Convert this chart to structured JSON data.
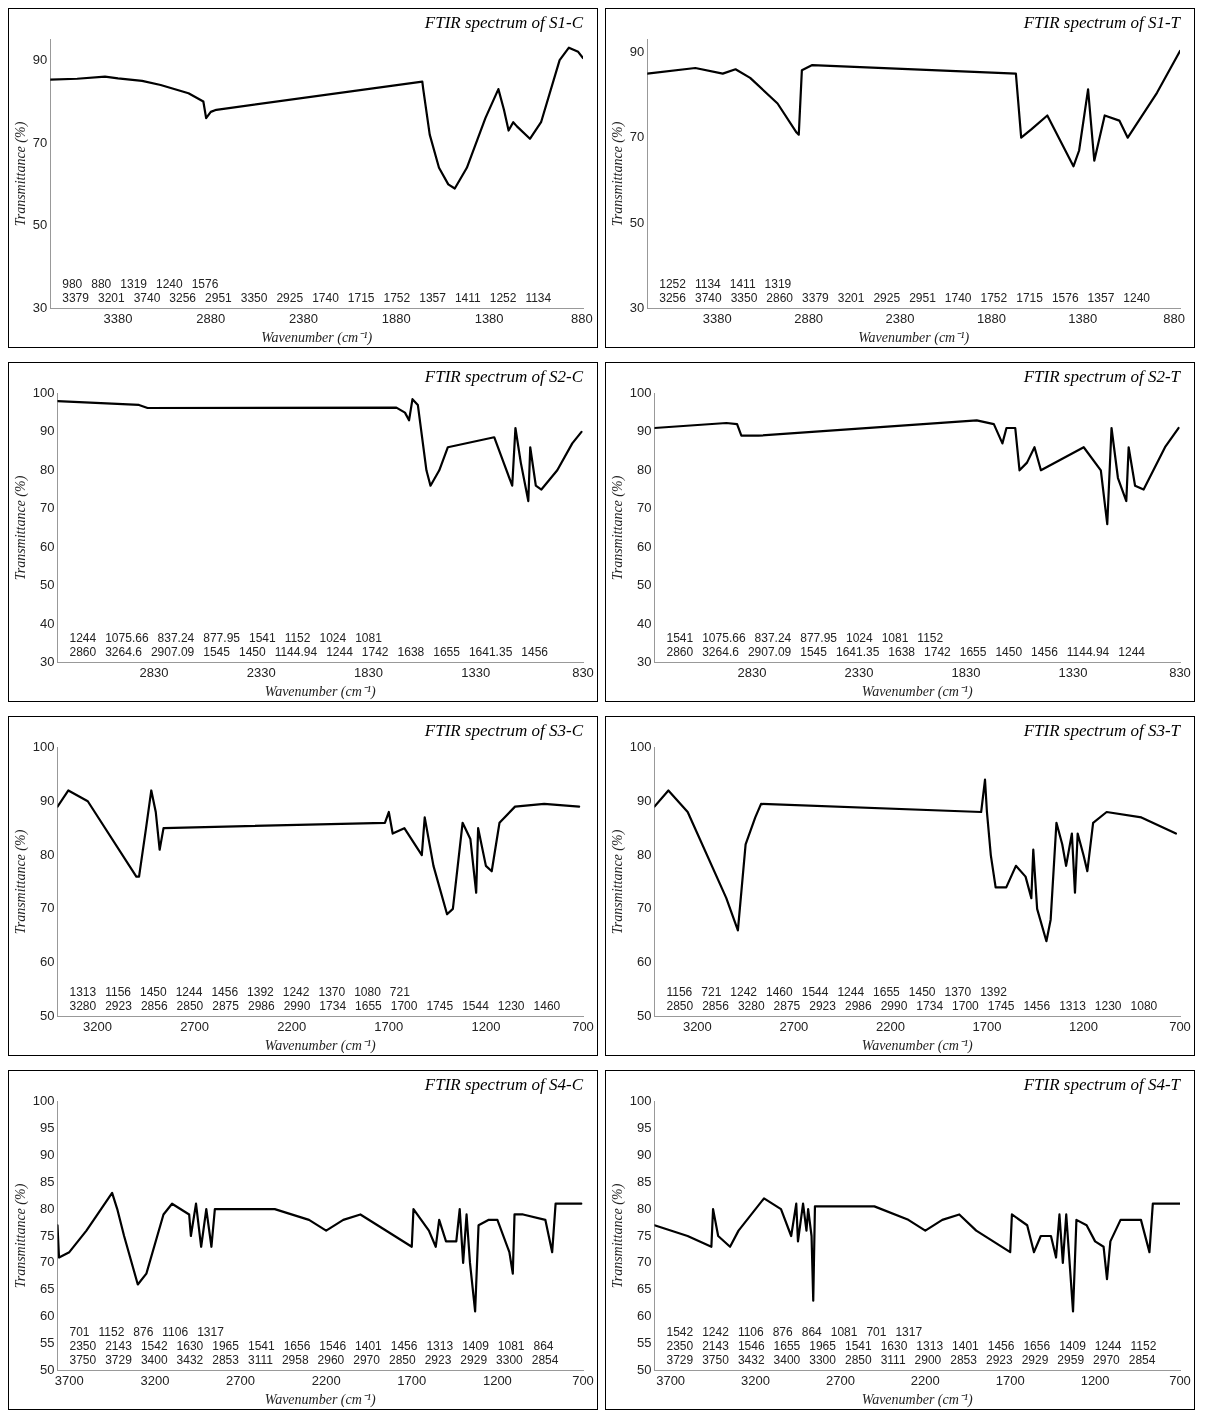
{
  "chart_data": [
    {
      "type": "line",
      "title": "FTIR spectrum of S1-C",
      "xlabel": "Wavenumber (cm⁻¹)",
      "ylabel": "Transmittance (%)",
      "color": "#000000",
      "x": [
        3745,
        3600,
        3450,
        3380,
        3250,
        3150,
        3000,
        2920,
        2905,
        2880,
        2850,
        1740,
        1735,
        1700,
        1650,
        1600,
        1565,
        1500,
        1400,
        1330,
        1300,
        1275,
        1250,
        1230,
        1160,
        1100,
        1000,
        950,
        900,
        874
      ],
      "values": [
        85.3,
        85.5,
        86,
        85.6,
        85,
        84,
        82,
        80,
        76,
        77.5,
        78,
        84.8,
        83,
        72,
        64,
        60,
        59,
        64,
        76,
        83,
        78,
        73,
        75,
        74,
        71,
        75,
        90,
        93,
        92,
        90.5
      ],
      "xlim": [
        3745,
        874
      ],
      "xticks": [
        3380,
        2880,
        2380,
        1880,
        1380,
        880
      ],
      "ylim": [
        30,
        95
      ],
      "yticks": [
        30,
        50,
        70,
        90
      ],
      "annotations": [
        "3379",
        "3201",
        "3740",
        "3256",
        "2951",
        "3350",
        "2925",
        "1740",
        "1715",
        "1752",
        "1357",
        "1411",
        "1252",
        "1134",
        "980",
        "880",
        "1319",
        "1240",
        "1576"
      ]
    },
    {
      "type": "line",
      "title": "FTIR spectrum of S1-T",
      "xlabel": "Wavenumber (cm⁻¹)",
      "ylabel": "Transmittance (%)",
      "color": "#000000",
      "x": [
        3763,
        3500,
        3350,
        3280,
        3200,
        3050,
        2946,
        2934,
        2917,
        2860,
        1746,
        1717,
        1660,
        1574,
        1431,
        1400,
        1351,
        1317,
        1260,
        1180,
        1134,
        974,
        848
      ],
      "values": [
        85,
        86.3,
        85,
        86,
        84,
        78,
        71.2,
        70.7,
        85.8,
        87,
        85,
        70,
        72,
        75.2,
        63.3,
        67,
        81.3,
        64.6,
        75.2,
        74,
        70,
        80.5,
        90.3
      ],
      "xlim": [
        3763,
        848
      ],
      "xticks": [
        3380,
        2880,
        2380,
        1880,
        1380,
        880
      ],
      "ylim": [
        30,
        93
      ],
      "yticks": [
        30,
        50,
        70,
        90
      ],
      "annotations": [
        "3256",
        "3740",
        "3350",
        "2860",
        "3379",
        "3201",
        "2925",
        "2951",
        "1740",
        "1752",
        "1715",
        "1576",
        "1357",
        "1240",
        "1252",
        "1134",
        "1411",
        "1319"
      ]
    },
    {
      "type": "line",
      "title": "FTIR spectrum of S2-C",
      "xlabel": "Wavenumber (cm⁻¹)",
      "ylabel": "Transmittance (%)",
      "color": "#000000",
      "x": [
        3280,
        2900,
        2860,
        1700,
        1660,
        1641,
        1625,
        1600,
        1560,
        1541,
        1500,
        1460,
        1244,
        1200,
        1160,
        1145,
        1120,
        1085,
        1076,
        1050,
        1024,
        950,
        880,
        837
      ],
      "values": [
        98,
        97,
        96.2,
        96.3,
        95,
        93,
        98.5,
        97,
        80,
        76,
        80,
        86,
        88.6,
        82,
        76,
        91,
        82,
        72,
        86,
        76,
        75,
        80,
        87,
        90
      ],
      "xlim": [
        3280,
        830
      ],
      "xticks": [
        2830,
        2330,
        1830,
        1330,
        830
      ],
      "ylim": [
        30,
        100
      ],
      "yticks": [
        30,
        40,
        50,
        60,
        70,
        80,
        90,
        100
      ],
      "annotations": [
        "2860",
        "3264.6",
        "2907.09",
        "1545",
        "1450",
        "1144.94",
        "1244",
        "1742",
        "1638",
        "1655",
        "1641.35",
        "1456",
        "1244",
        "1075.66",
        "837.24",
        "877.95",
        "1541",
        "1152",
        "1024",
        "1081"
      ]
    },
    {
      "type": "line",
      "title": "FTIR spectrum of S2-T",
      "xlabel": "Wavenumber (cm⁻¹)",
      "ylabel": "Transmittance (%)",
      "color": "#000000",
      "x": [
        3286,
        2950,
        2900,
        2880,
        2800,
        1780,
        1700,
        1660,
        1641,
        1600,
        1580,
        1545,
        1510,
        1480,
        1380,
        1280,
        1200,
        1170,
        1150,
        1120,
        1081,
        1070,
        1040,
        1000,
        900,
        837
      ],
      "values": [
        91,
        92.3,
        92,
        89,
        89,
        93,
        92,
        87,
        91,
        91,
        80,
        82,
        86,
        80,
        83,
        86,
        80,
        66,
        91,
        78,
        72,
        86,
        76,
        75,
        86,
        91
      ],
      "xlim": [
        3286,
        830
      ],
      "xticks": [
        2830,
        2330,
        1830,
        1330,
        830
      ],
      "ylim": [
        30,
        100
      ],
      "yticks": [
        30,
        40,
        50,
        60,
        70,
        80,
        90,
        100
      ],
      "annotations": [
        "2860",
        "3264.6",
        "2907.09",
        "1545",
        "1641.35",
        "1638",
        "1742",
        "1655",
        "1450",
        "1456",
        "1144.94",
        "1244",
        "1541",
        "1075.66",
        "837.24",
        "877.95",
        "1024",
        "1081",
        "1152"
      ]
    },
    {
      "type": "line",
      "title": "FTIR spectrum of S3-C",
      "xlabel": "Wavenumber (cm⁻¹)",
      "ylabel": "Transmittance (%)",
      "color": "#000000",
      "x": [
        3406,
        3350,
        3250,
        3000,
        2986,
        2950,
        2923,
        2900,
        2880,
        2860,
        1720,
        1700,
        1680,
        1620,
        1530,
        1515,
        1470,
        1400,
        1370,
        1320,
        1280,
        1250,
        1240,
        1200,
        1170,
        1130,
        1050,
        900,
        720
      ],
      "values": [
        89,
        92,
        90,
        76,
        76,
        85,
        92,
        88,
        81,
        85,
        86,
        88,
        84,
        85,
        80,
        87,
        78,
        69,
        70,
        86,
        83,
        73,
        85,
        78,
        77,
        86,
        89,
        89.5,
        89
      ],
      "xlim": [
        3406,
        700
      ],
      "xticks": [
        3200,
        2700,
        2200,
        1700,
        1200,
        700
      ],
      "ylim": [
        50,
        100
      ],
      "yticks": [
        50,
        60,
        70,
        80,
        90,
        100
      ],
      "annotations": [
        "3280",
        "2923",
        "2856",
        "2850",
        "2875",
        "2986",
        "2990",
        "1734",
        "1655",
        "1700",
        "1745",
        "1544",
        "1230",
        "1460",
        "1313",
        "1156",
        "1450",
        "1244",
        "1456",
        "1392",
        "1242",
        "1370",
        "1080",
        "721"
      ]
    },
    {
      "type": "line",
      "title": "FTIR spectrum of S3-T",
      "xlabel": "Wavenumber (cm⁻¹)",
      "ylabel": "Transmittance (%)",
      "color": "#000000",
      "x": [
        3422,
        3350,
        3250,
        3050,
        2990,
        2950,
        2900,
        2870,
        1730,
        1710,
        1700,
        1680,
        1655,
        1600,
        1550,
        1500,
        1470,
        1460,
        1440,
        1392,
        1370,
        1340,
        1310,
        1290,
        1260,
        1244,
        1230,
        1200,
        1180,
        1150,
        1080,
        900,
        721
      ],
      "values": [
        89,
        92,
        88,
        72,
        66,
        82,
        87,
        89.5,
        88,
        94,
        88,
        80,
        74,
        74,
        78,
        76,
        72,
        81,
        70,
        64,
        68,
        86,
        82,
        78,
        84,
        73,
        84,
        80,
        77,
        86,
        88,
        87,
        84
      ],
      "xlim": [
        3422,
        700
      ],
      "xticks": [
        3200,
        2700,
        2200,
        1700,
        1200,
        700
      ],
      "ylim": [
        50,
        100
      ],
      "yticks": [
        50,
        60,
        70,
        80,
        90,
        100
      ],
      "annotations": [
        "2850",
        "2856",
        "3280",
        "2875",
        "2923",
        "2986",
        "2990",
        "1734",
        "1700",
        "1745",
        "1456",
        "1313",
        "1230",
        "1080",
        "1156",
        "721",
        "1242",
        "1460",
        "1544",
        "1244",
        "1655",
        "1450",
        "1370",
        "1392"
      ]
    },
    {
      "type": "line",
      "title": "FTIR spectrum of S4-C",
      "xlabel": "Wavenumber (cm⁻¹)",
      "ylabel": "Transmittance (%)",
      "color": "#000000",
      "x": [
        3769,
        3760,
        3700,
        3600,
        3450,
        3420,
        3380,
        3300,
        3250,
        3150,
        3100,
        3000,
        2990,
        2960,
        2930,
        2900,
        2870,
        2850,
        2500,
        2300,
        2200,
        2100,
        2000,
        1900,
        1700,
        1690,
        1600,
        1560,
        1540,
        1500,
        1440,
        1420,
        1400,
        1380,
        1360,
        1330,
        1310,
        1250,
        1200,
        1130,
        1110,
        1100,
        1050,
        920,
        880,
        860,
        710
      ],
      "values": [
        77,
        71,
        72,
        76,
        83,
        80,
        75,
        66,
        68,
        79,
        81,
        79,
        75,
        81,
        73,
        80,
        73,
        80,
        80,
        78,
        76,
        78,
        79,
        77,
        73,
        80,
        76,
        73,
        78,
        74,
        74,
        80,
        70,
        79,
        70,
        61,
        77,
        78,
        78,
        72,
        68,
        79,
        79,
        78,
        72,
        81,
        81
      ],
      "xlim": [
        3769,
        700
      ],
      "xticks": [
        3700,
        3200,
        2700,
        2200,
        1700,
        1200,
        700
      ],
      "ylim": [
        50,
        100
      ],
      "yticks": [
        50,
        55,
        60,
        65,
        70,
        75,
        80,
        85,
        90,
        95,
        100
      ],
      "annotations": [
        "3750",
        "3729",
        "3400",
        "3432",
        "2853",
        "3111",
        "2958",
        "2960",
        "2970",
        "2850",
        "2923",
        "2929",
        "3300",
        "2854",
        "2350",
        "2143",
        "1542",
        "1630",
        "1965",
        "1541",
        "1656",
        "1546",
        "1401",
        "1456",
        "1313",
        "1409",
        "1081",
        "864",
        "701",
        "1152",
        "876",
        "1106",
        "1317"
      ]
    },
    {
      "type": "line",
      "title": "FTIR spectrum of S4-T",
      "xlabel": "Wavenumber (cm⁻¹)",
      "ylabel": "Transmittance (%)",
      "color": "#000000",
      "x": [
        3795,
        3600,
        3460,
        3450,
        3420,
        3350,
        3300,
        3150,
        3050,
        2990,
        2960,
        2950,
        2920,
        2900,
        2890,
        2870,
        2860,
        2850,
        2500,
        2300,
        2200,
        2100,
        2000,
        1900,
        1700,
        1690,
        1600,
        1560,
        1520,
        1460,
        1430,
        1410,
        1390,
        1370,
        1330,
        1310,
        1250,
        1200,
        1150,
        1130,
        1110,
        1050,
        930,
        880,
        860,
        700
      ],
      "values": [
        77,
        75,
        73,
        80,
        75,
        73,
        76,
        82,
        80,
        75,
        81,
        74,
        81,
        76,
        80,
        75,
        63,
        80.5,
        80.5,
        78,
        76,
        78,
        79,
        76,
        72,
        79,
        77,
        72,
        75,
        75,
        71,
        79,
        70,
        79,
        61,
        78,
        77,
        74,
        73,
        67,
        74,
        78,
        78,
        72,
        81,
        81
      ],
      "xlim": [
        3795,
        700
      ],
      "xticks": [
        3700,
        3200,
        2700,
        2200,
        1700,
        1200,
        700
      ],
      "ylim": [
        50,
        100
      ],
      "yticks": [
        50,
        55,
        60,
        65,
        70,
        75,
        80,
        85,
        90,
        95,
        100
      ],
      "annotations": [
        "3729",
        "3750",
        "3432",
        "3400",
        "3300",
        "2850",
        "3111",
        "2900",
        "2853",
        "2923",
        "2929",
        "2959",
        "2970",
        "2854",
        "2350",
        "2143",
        "1546",
        "1655",
        "1965",
        "1541",
        "1630",
        "1313",
        "1401",
        "1456",
        "1656",
        "1409",
        "1244",
        "1152",
        "1542",
        "1242",
        "1106",
        "876",
        "864",
        "1081",
        "701",
        "1317"
      ]
    }
  ]
}
